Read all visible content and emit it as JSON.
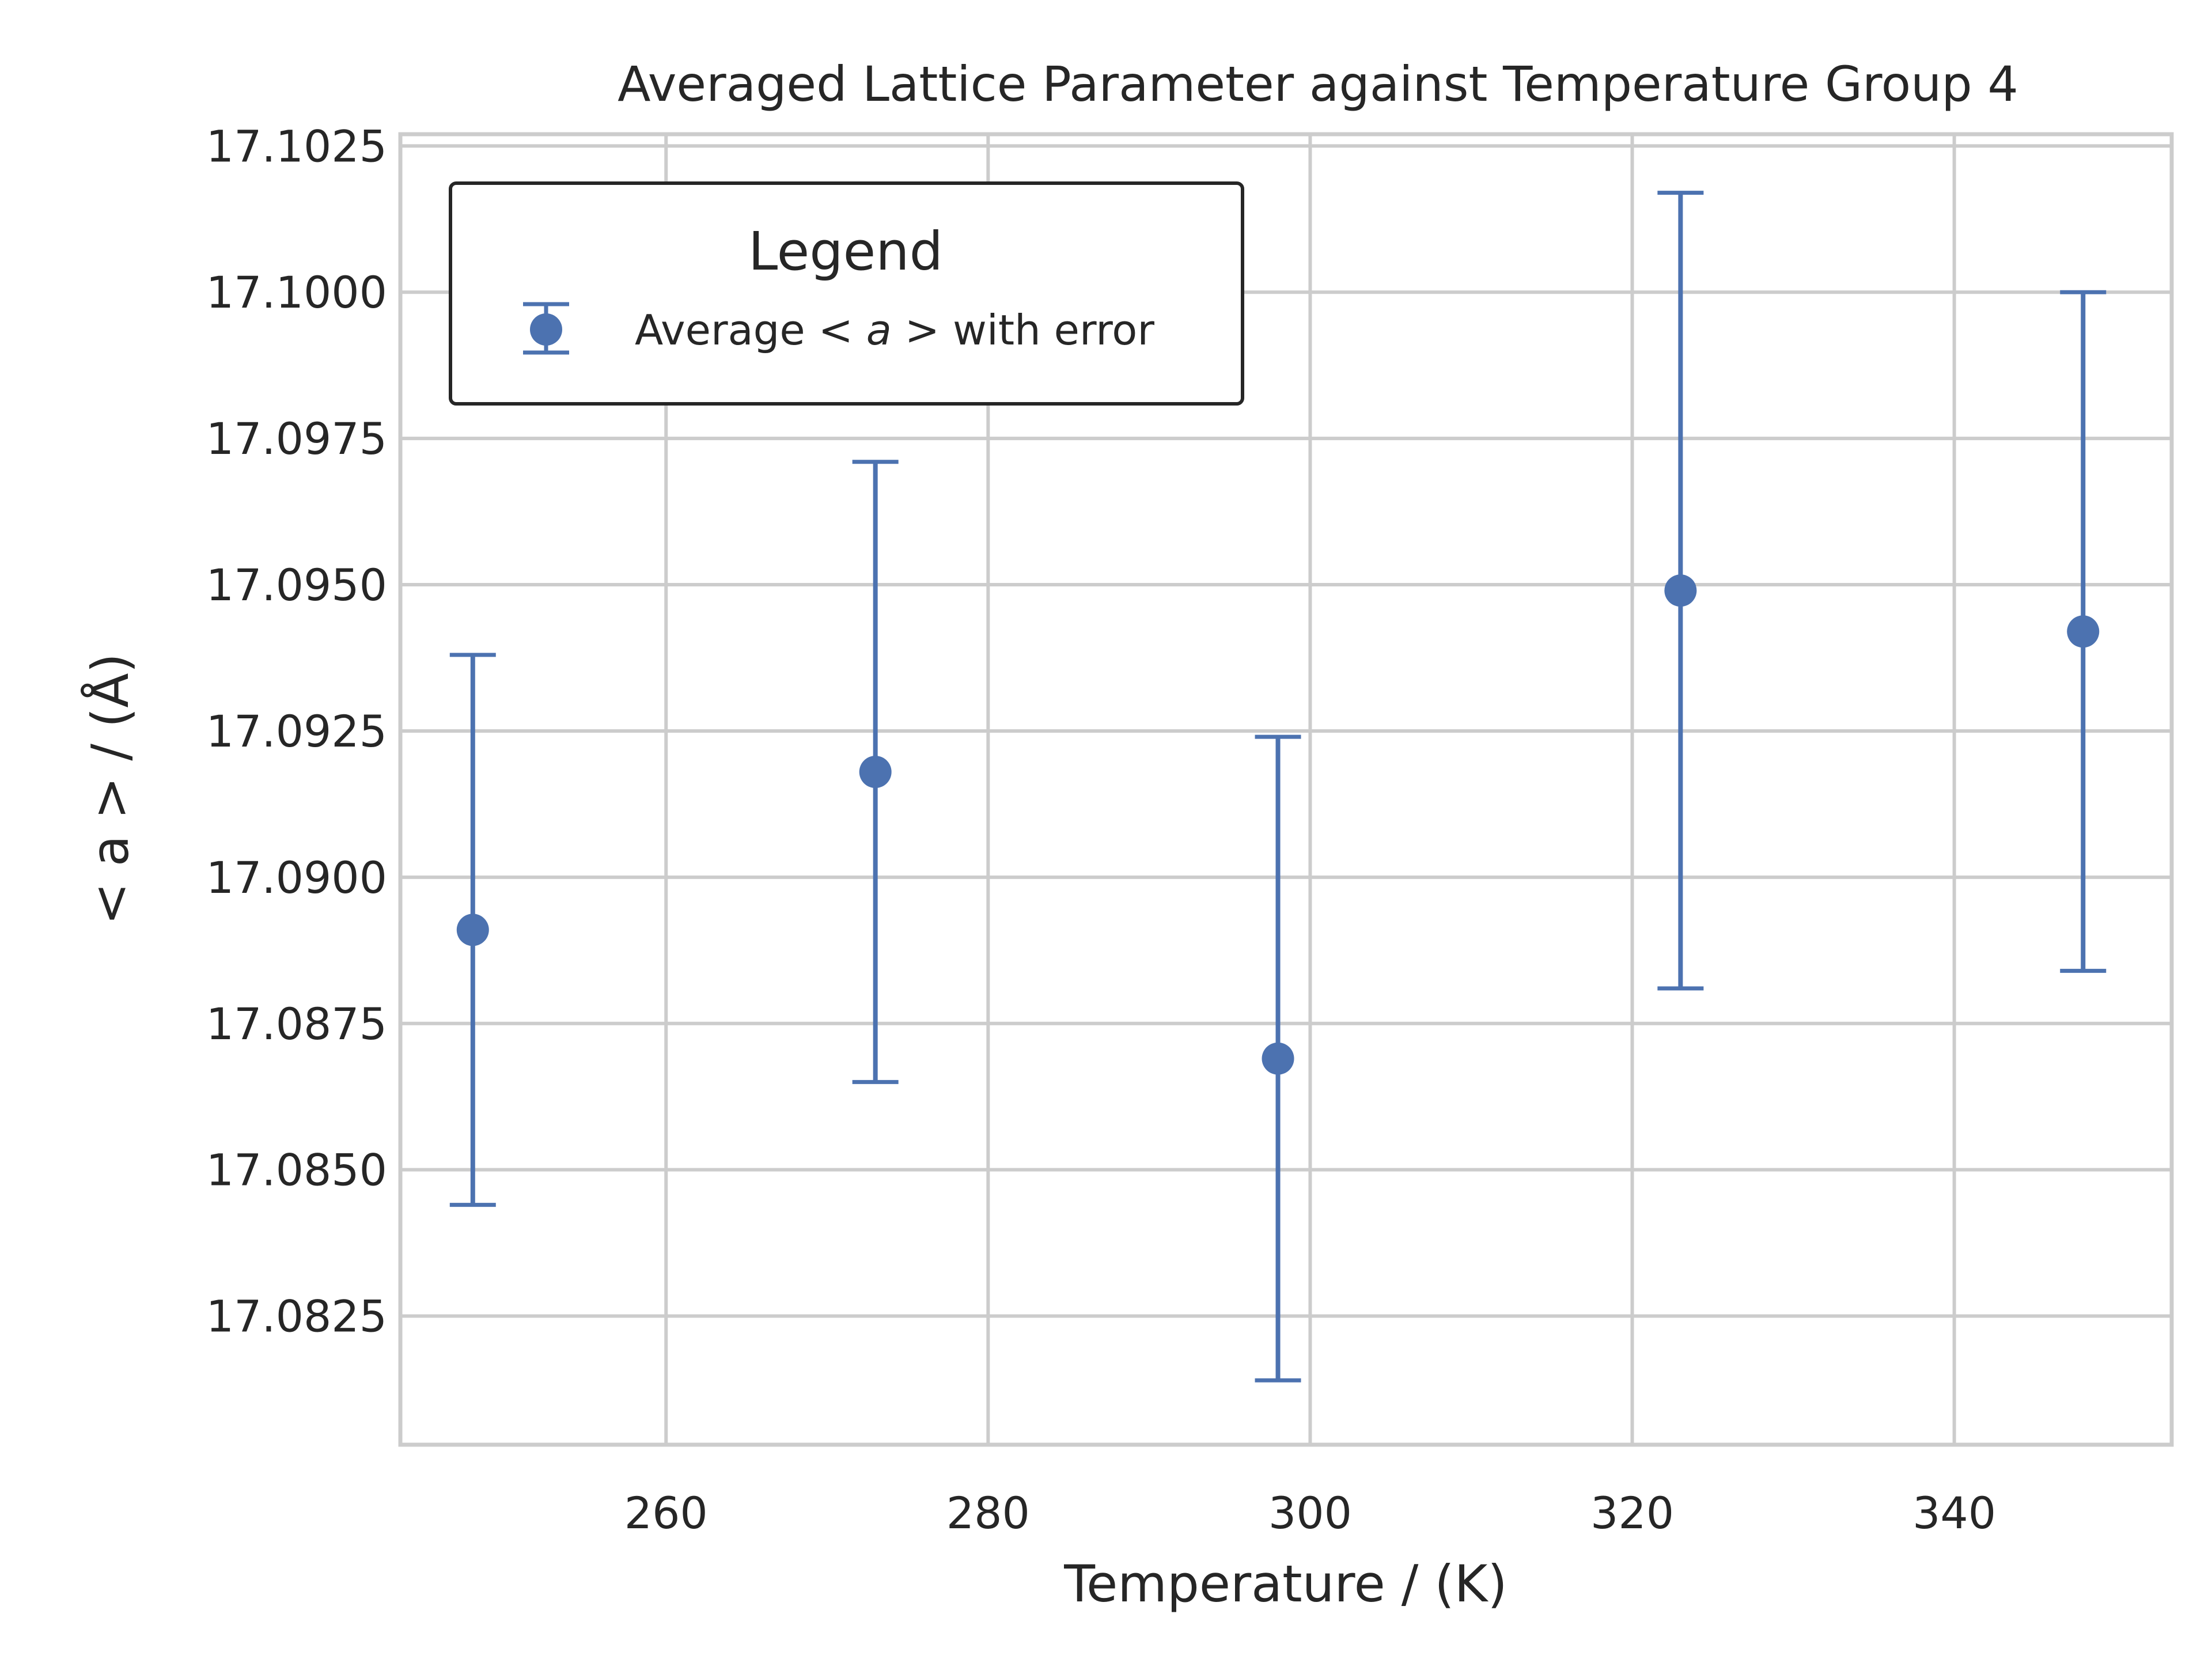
{
  "chart_data": {
    "type": "scatter",
    "title": "Averaged Lattice Parameter against Temperature Group 4",
    "xlabel": "Temperature  / (K)",
    "ylabel": "< a >   / (Å)",
    "xlim": [
      243.5,
      353.5
    ],
    "ylim": [
      17.0803,
      17.1027
    ],
    "x_ticks": [
      260,
      280,
      300,
      320,
      340
    ],
    "y_ticks": [
      17.0825,
      17.085,
      17.0875,
      17.09,
      17.0925,
      17.095,
      17.0975,
      17.1,
      17.1025
    ],
    "grid": true,
    "color": "#4c72b0",
    "legend": {
      "title": "Legend",
      "placement": "top-left",
      "entries": [
        {
          "prefix": "Average ",
          "math": "< a >",
          "suffix": " with error"
        }
      ]
    },
    "series": [
      {
        "name": "Average < a > with error",
        "points": [
          {
            "x": 248,
            "y": 17.0891,
            "err": 0.0047
          },
          {
            "x": 273,
            "y": 17.0918,
            "err": 0.0053
          },
          {
            "x": 298,
            "y": 17.0869,
            "err": 0.0055
          },
          {
            "x": 323,
            "y": 17.0949,
            "err": 0.0068
          },
          {
            "x": 348,
            "y": 17.0942,
            "err": 0.0058
          }
        ]
      }
    ]
  }
}
